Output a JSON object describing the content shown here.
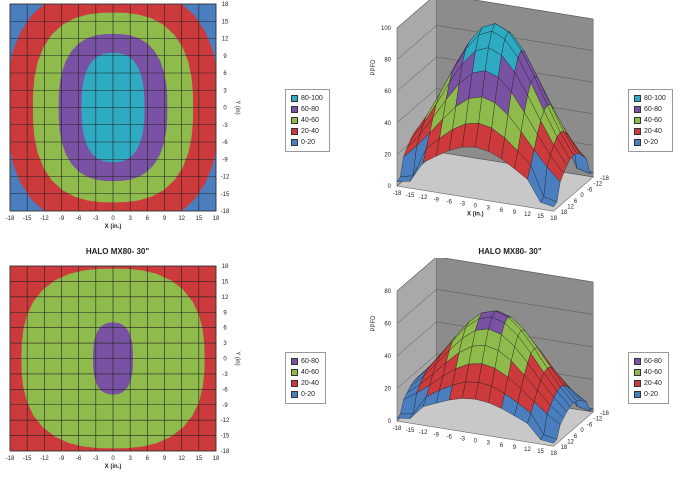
{
  "colors": {
    "0-20": "#4a7ebf",
    "20-40": "#cc3a3c",
    "40-60": "#8fba4c",
    "60-80": "#7a52a3",
    "80-100": "#2eaac2",
    "grid": "#222222",
    "wall": "#8c8c8c",
    "floor": "#c8c8c8"
  },
  "chart_data": [
    {
      "type": "heatmap",
      "title": "",
      "xlabel": "X (in.)",
      "ylabel": "Y (in)",
      "x_ticks": [
        "-18",
        "-15",
        "-12",
        "-9",
        "-6",
        "-3",
        "0",
        "3",
        "6",
        "9",
        "12",
        "15",
        "18"
      ],
      "y_ticks": [
        "18",
        "15",
        "12",
        "9",
        "6",
        "3",
        "0",
        "-3",
        "-6",
        "-9",
        "-12",
        "-15",
        "-18"
      ],
      "bands": [
        {
          "label": "0-20",
          "rx": 26,
          "ry": 26
        },
        {
          "label": "20-40",
          "rx": 18.5,
          "ry": 21
        },
        {
          "label": "40-60",
          "rx": 14,
          "ry": 16.5
        },
        {
          "label": "60-80",
          "rx": 9.5,
          "ry": 12.8
        },
        {
          "label": "80-100",
          "rx": 5.5,
          "ry": 9.5
        }
      ],
      "legend": [
        "80-100",
        "60-80",
        "40-60",
        "20-40",
        "0-20"
      ]
    },
    {
      "type": "area",
      "subtype": "3d-surface",
      "title": "",
      "zlabel": "PPFD",
      "xlabel": "X (in.)",
      "zlim": [
        0,
        100
      ],
      "z_ticks": [
        "0",
        "20",
        "40",
        "60",
        "80",
        "100"
      ],
      "x_ticks": [
        "-18",
        "-15",
        "-12",
        "-9",
        "-6",
        "-3",
        "0",
        "3",
        "6",
        "9",
        "12",
        "15",
        "18"
      ],
      "y_ticks": [
        "18",
        "12",
        "6",
        "0",
        "-6",
        "-12",
        "-18"
      ],
      "peak": 100,
      "legend": [
        "80-100",
        "60-80",
        "40-60",
        "20-40",
        "0-20"
      ]
    },
    {
      "type": "heatmap",
      "title": "HALO MX80- 30\"",
      "xlabel": "X (in.)",
      "ylabel": "Y (in)",
      "x_ticks": [
        "-18",
        "-15",
        "-12",
        "-9",
        "-6",
        "-3",
        "0",
        "3",
        "6",
        "9",
        "12",
        "15",
        "18"
      ],
      "y_ticks": [
        "18",
        "15",
        "12",
        "9",
        "6",
        "3",
        "0",
        "-3",
        "-6",
        "-9",
        "-12",
        "-15",
        "-18"
      ],
      "bands": [
        {
          "label": "0-20",
          "rx": 26,
          "ry": 26
        },
        {
          "label": "20-40",
          "rx": 23,
          "ry": 24
        },
        {
          "label": "40-60",
          "rx": 16,
          "ry": 17.5
        },
        {
          "label": "60-80",
          "rx": 3.5,
          "ry": 7
        }
      ],
      "legend": [
        "60-80",
        "40-60",
        "20-40",
        "0-20"
      ]
    },
    {
      "type": "area",
      "subtype": "3d-surface",
      "title": "HALO MX80- 30\"",
      "zlabel": "PPFD",
      "xlabel": "",
      "zlim": [
        0,
        80
      ],
      "z_ticks": [
        "0",
        "20",
        "40",
        "60",
        "80"
      ],
      "x_ticks": [
        "-18",
        "-15",
        "-12",
        "-9",
        "-6",
        "-3",
        "0",
        "3",
        "6",
        "9",
        "12",
        "15",
        "18"
      ],
      "y_ticks": [
        "18",
        "12",
        "6",
        "0",
        "-6",
        "-12",
        "-18"
      ],
      "peak": 65,
      "legend": [
        "60-80",
        "40-60",
        "20-40",
        "0-20"
      ]
    }
  ]
}
